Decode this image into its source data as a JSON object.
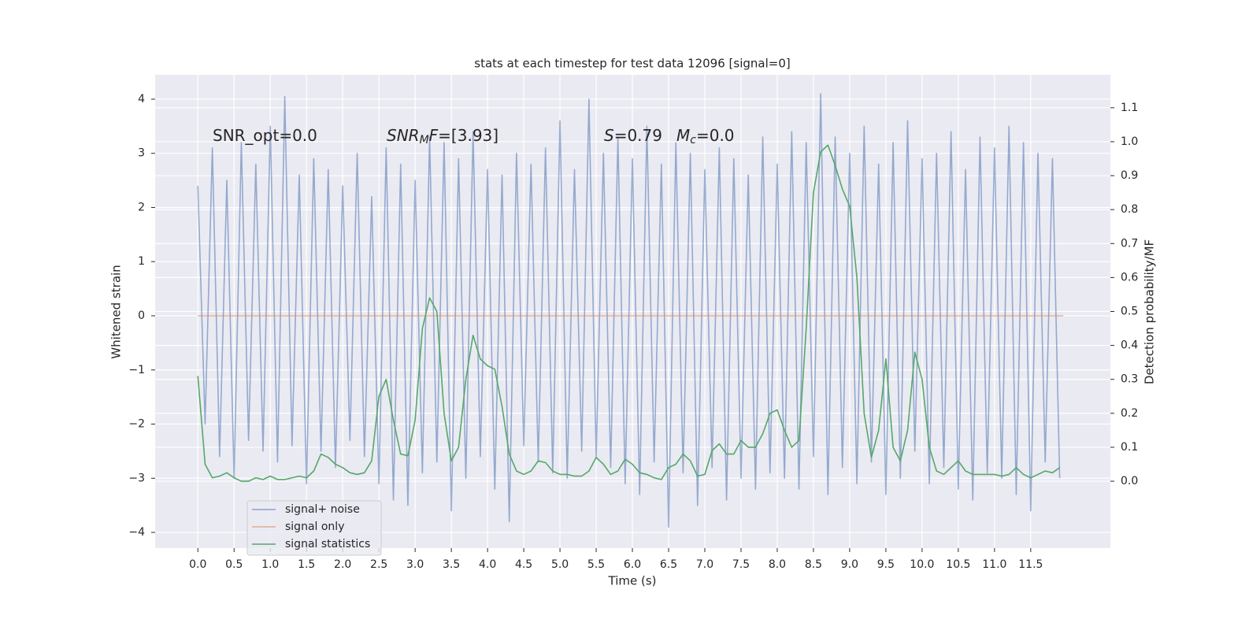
{
  "chart_data": {
    "type": "line",
    "title": "stats at each timestep for test data 12096 [signal=0]",
    "xlabel": "Time (s)",
    "ylabel": "Whitened strain",
    "y2label": "Detection probability/MF",
    "annotations": [
      {
        "parts": [
          {
            "text": "SNR_opt=0.0"
          }
        ]
      },
      {
        "parts": [
          {
            "text": "SNR",
            "italic": true
          },
          {
            "text": "M",
            "italic": true,
            "sub": true
          },
          {
            "text": "F",
            "italic": true
          },
          {
            "text": "=[3.93]"
          }
        ]
      },
      {
        "parts": [
          {
            "text": "S",
            "italic": true
          },
          {
            "text": "=0.79"
          }
        ]
      },
      {
        "parts": [
          {
            "text": "M",
            "italic": true
          },
          {
            "text": "c",
            "italic": true,
            "sub": true
          },
          {
            "text": "=0.0"
          }
        ]
      }
    ],
    "x": [
      0,
      0.1,
      0.2,
      0.3,
      0.4,
      0.5,
      0.6,
      0.7,
      0.8,
      0.9,
      1,
      1.1,
      1.2,
      1.3,
      1.4,
      1.5,
      1.6,
      1.7,
      1.8,
      1.9,
      2,
      2.1,
      2.2,
      2.3,
      2.4,
      2.5,
      2.6,
      2.7,
      2.8,
      2.9,
      3,
      3.1,
      3.2,
      3.3,
      3.4,
      3.5,
      3.6,
      3.7,
      3.8,
      3.9,
      4,
      4.1,
      4.2,
      4.3,
      4.4,
      4.5,
      4.6,
      4.7,
      4.8,
      4.9,
      5,
      5.1,
      5.2,
      5.3,
      5.4,
      5.5,
      5.6,
      5.7,
      5.8,
      5.9,
      6,
      6.1,
      6.2,
      6.3,
      6.4,
      6.5,
      6.6,
      6.7,
      6.8,
      6.9,
      7,
      7.1,
      7.2,
      7.3,
      7.4,
      7.5,
      7.6,
      7.7,
      7.8,
      7.9,
      8,
      8.1,
      8.2,
      8.3,
      8.4,
      8.5,
      8.6,
      8.7,
      8.8,
      8.9,
      9,
      9.1,
      9.2,
      9.3,
      9.4,
      9.5,
      9.6,
      9.7,
      9.8,
      9.9,
      10,
      10.1,
      10.2,
      10.3,
      10.4,
      10.5,
      10.6,
      10.7,
      10.8,
      10.9,
      11,
      11.1,
      11.2,
      11.3,
      11.4,
      11.5,
      11.6,
      11.7,
      11.8,
      11.9
    ],
    "series": [
      {
        "name": "signal+ noise",
        "color": "#4c72b0",
        "values": [
          2.4,
          -2.0,
          3.1,
          -2.6,
          2.5,
          -3.0,
          3.2,
          -2.3,
          2.8,
          -2.5,
          3.5,
          -2.7,
          4.05,
          -2.4,
          2.6,
          -3.1,
          2.9,
          -2.5,
          2.7,
          -2.8,
          2.4,
          -2.3,
          3.0,
          -2.6,
          2.2,
          -3.1,
          3.1,
          -3.4,
          2.8,
          -3.5,
          2.5,
          -2.9,
          3.3,
          -2.7,
          3.2,
          -3.6,
          2.9,
          -3.0,
          3.4,
          -2.6,
          2.7,
          -3.2,
          2.6,
          -3.8,
          3.0,
          -2.4,
          2.8,
          -2.7,
          3.1,
          -2.9,
          3.6,
          -3.0,
          2.7,
          -2.5,
          4.0,
          -2.6,
          3.0,
          -2.8,
          3.3,
          -3.1,
          2.9,
          -3.3,
          3.5,
          -2.7,
          2.8,
          -3.9,
          3.2,
          -2.9,
          3.0,
          -3.5,
          2.7,
          -2.8,
          3.1,
          -3.4,
          2.9,
          -3.0,
          2.6,
          -3.2,
          3.3,
          -2.9,
          2.8,
          -3.0,
          3.4,
          -3.2,
          3.2,
          -2.6,
          4.1,
          -3.3,
          3.3,
          -2.8,
          3.0,
          -3.1,
          3.5,
          -2.7,
          2.8,
          -3.3,
          3.2,
          -3.0,
          3.6,
          -2.5,
          2.9,
          -3.1,
          3.0,
          -2.8,
          3.4,
          -3.2,
          2.7,
          -3.4,
          3.3,
          -2.9,
          3.1,
          -3.0,
          3.5,
          -3.3,
          3.2,
          -3.6,
          3.0,
          -2.7,
          2.9,
          -3.0
        ]
      },
      {
        "name": "signal only",
        "color": "#dd8452",
        "x": [
          0,
          11.95
        ],
        "values": [
          0,
          0
        ]
      },
      {
        "name": "signal statistics",
        "color": "#55a868",
        "axis": "y2",
        "values": [
          0.31,
          0.05,
          0.01,
          0.015,
          0.025,
          0.01,
          0.0,
          0.0,
          0.01,
          0.005,
          0.015,
          0.005,
          0.005,
          0.01,
          0.015,
          0.01,
          0.03,
          0.08,
          0.07,
          0.05,
          0.04,
          0.025,
          0.02,
          0.025,
          0.06,
          0.25,
          0.3,
          0.18,
          0.08,
          0.075,
          0.18,
          0.45,
          0.54,
          0.5,
          0.2,
          0.06,
          0.1,
          0.3,
          0.43,
          0.36,
          0.34,
          0.33,
          0.22,
          0.08,
          0.03,
          0.02,
          0.03,
          0.06,
          0.055,
          0.03,
          0.02,
          0.02,
          0.015,
          0.015,
          0.03,
          0.07,
          0.05,
          0.02,
          0.03,
          0.065,
          0.05,
          0.025,
          0.02,
          0.01,
          0.005,
          0.04,
          0.05,
          0.08,
          0.06,
          0.015,
          0.02,
          0.09,
          0.11,
          0.08,
          0.08,
          0.12,
          0.1,
          0.1,
          0.14,
          0.2,
          0.21,
          0.15,
          0.1,
          0.12,
          0.45,
          0.85,
          0.97,
          0.99,
          0.93,
          0.86,
          0.81,
          0.6,
          0.2,
          0.07,
          0.15,
          0.36,
          0.1,
          0.06,
          0.15,
          0.38,
          0.3,
          0.1,
          0.03,
          0.02,
          0.04,
          0.06,
          0.03,
          0.02,
          0.02,
          0.02,
          0.02,
          0.015,
          0.02,
          0.04,
          0.02,
          0.01,
          0.02,
          0.03,
          0.025,
          0.04
        ]
      }
    ],
    "xlim": [
      -0.59,
      12.6
    ],
    "xticks": [
      {
        "value": 0,
        "label": "0.0"
      },
      0.5,
      {
        "value": 1,
        "label": "1.0"
      },
      1.5,
      {
        "value": 2,
        "label": "2.0"
      },
      2.5,
      {
        "value": 3,
        "label": "3.0"
      },
      3.5,
      {
        "value": 4,
        "label": "4.0"
      },
      4.5,
      {
        "value": 5,
        "label": "5.0"
      },
      5.5,
      {
        "value": 6,
        "label": "6.0"
      },
      6.5,
      {
        "value": 7,
        "label": "7.0"
      },
      7.5,
      {
        "value": 8,
        "label": "8.0"
      },
      8.5,
      {
        "value": 9,
        "label": "9.0"
      },
      9.5,
      {
        "value": 10,
        "label": "10.0"
      },
      10.5,
      {
        "value": 11,
        "label": "11.0"
      },
      11.5
    ],
    "ylim": [
      -4.29,
      4.45
    ],
    "yticks": [
      {
        "value": -4,
        "label": "−4"
      },
      {
        "value": -3,
        "label": "−3"
      },
      {
        "value": -2,
        "label": "−2"
      },
      {
        "value": -1,
        "label": "−1"
      },
      0,
      1,
      2,
      3,
      4
    ],
    "y2lim": [
      -0.197,
      1.197
    ],
    "y2ticks": [
      {
        "value": 0,
        "label": "0.0"
      },
      0.1,
      0.2,
      0.3,
      0.4,
      0.5,
      0.6,
      0.7,
      0.8,
      0.9,
      {
        "value": 1,
        "label": "1.0"
      },
      1.1
    ],
    "grid": true,
    "legend": "lower left"
  }
}
